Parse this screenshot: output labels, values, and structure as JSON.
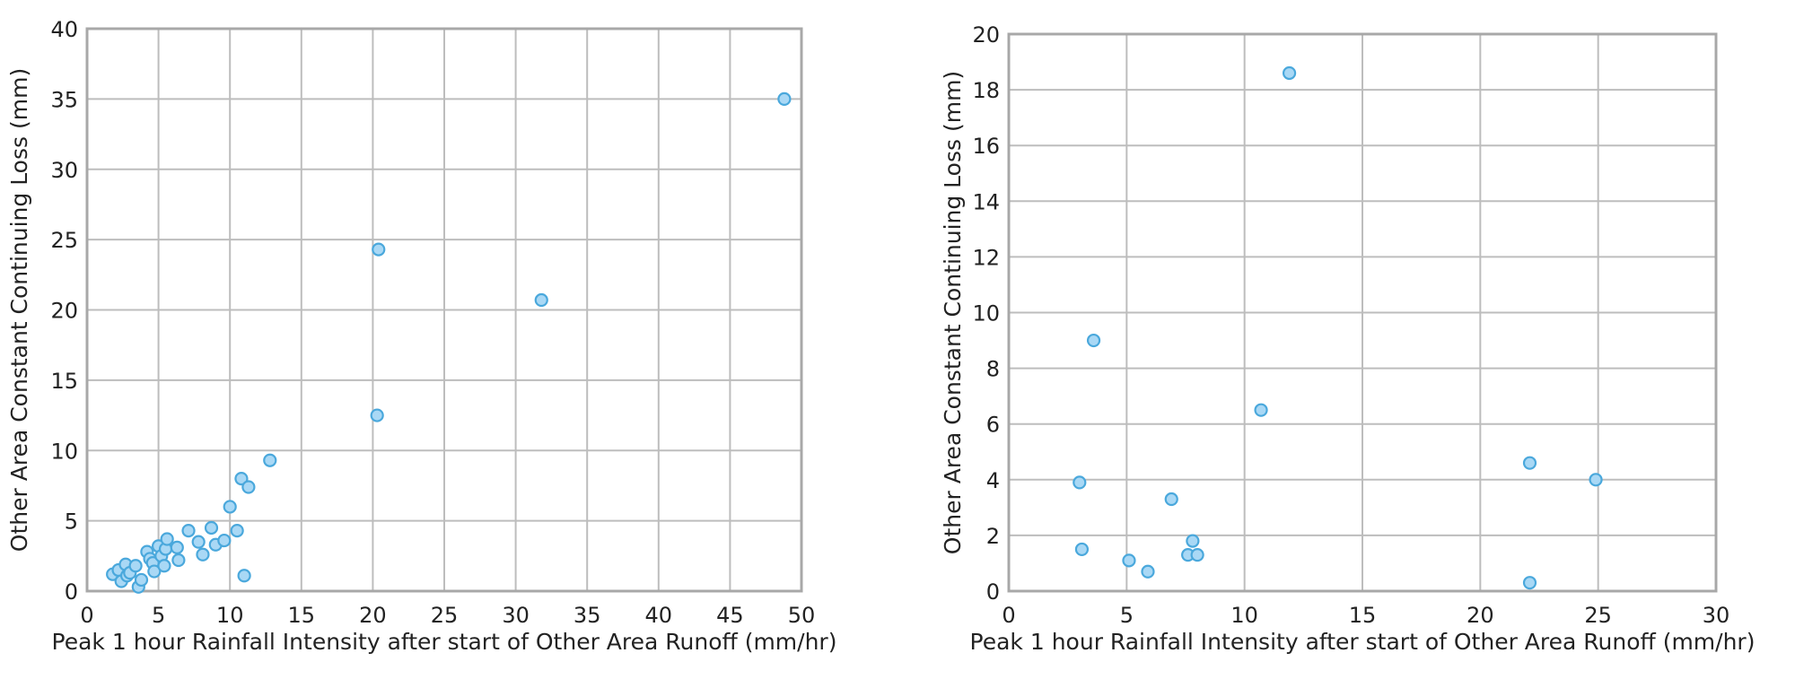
{
  "chart_data": [
    {
      "type": "scatter",
      "xlabel": "Peak 1 hour Rainfall Intensity after start of Other Area Runoff (mm/hr)",
      "ylabel": "Other Area Constant Continuing Loss (mm)",
      "xlim": [
        0,
        50
      ],
      "ylim": [
        0,
        40
      ],
      "xticks": [
        "0",
        "5",
        "10",
        "15",
        "20",
        "25",
        "30",
        "35",
        "40",
        "45",
        "50"
      ],
      "yticks": [
        "0",
        "5",
        "10",
        "15",
        "20",
        "25",
        "30",
        "35",
        "40"
      ],
      "grid": true,
      "series": [
        {
          "points": [
            [
              1.8,
              1.2
            ],
            [
              2.2,
              1.5
            ],
            [
              2.4,
              0.7
            ],
            [
              2.7,
              1.9
            ],
            [
              2.8,
              1.1
            ],
            [
              3.0,
              1.3
            ],
            [
              3.4,
              1.8
            ],
            [
              3.6,
              0.3
            ],
            [
              3.8,
              0.8
            ],
            [
              4.2,
              2.8
            ],
            [
              4.4,
              2.3
            ],
            [
              4.6,
              2.0
            ],
            [
              4.7,
              1.4
            ],
            [
              5.0,
              3.2
            ],
            [
              5.2,
              2.5
            ],
            [
              5.4,
              1.8
            ],
            [
              5.5,
              3.0
            ],
            [
              5.6,
              3.7
            ],
            [
              6.3,
              3.1
            ],
            [
              6.4,
              2.2
            ],
            [
              7.1,
              4.3
            ],
            [
              7.8,
              3.5
            ],
            [
              8.1,
              2.6
            ],
            [
              8.7,
              4.5
            ],
            [
              9.0,
              3.3
            ],
            [
              9.6,
              3.6
            ],
            [
              10.0,
              6.0
            ],
            [
              10.5,
              4.3
            ],
            [
              10.8,
              8.0
            ],
            [
              11.0,
              1.1
            ],
            [
              11.3,
              7.4
            ],
            [
              12.8,
              9.3
            ],
            [
              20.3,
              12.5
            ],
            [
              20.4,
              24.3
            ],
            [
              31.8,
              20.7
            ],
            [
              48.8,
              35.0
            ]
          ]
        }
      ]
    },
    {
      "type": "scatter",
      "xlabel": "Peak 1 hour Rainfall Intensity after start of Other Area Runoff (mm/hr)",
      "ylabel": "Other Area Constant Continuing Loss (mm)",
      "xlim": [
        0,
        30
      ],
      "ylim": [
        0,
        20
      ],
      "xticks": [
        "0",
        "5",
        "10",
        "15",
        "20",
        "25",
        "30"
      ],
      "yticks": [
        "0",
        "2",
        "4",
        "6",
        "8",
        "10",
        "12",
        "14",
        "16",
        "18",
        "20"
      ],
      "grid": true,
      "series": [
        {
          "points": [
            [
              3.0,
              3.9
            ],
            [
              3.1,
              1.5
            ],
            [
              3.6,
              9.0
            ],
            [
              5.1,
              1.1
            ],
            [
              5.9,
              0.7
            ],
            [
              6.9,
              3.3
            ],
            [
              7.6,
              1.3
            ],
            [
              7.8,
              1.8
            ],
            [
              8.0,
              1.3
            ],
            [
              10.7,
              6.5
            ],
            [
              11.9,
              18.6
            ],
            [
              22.1,
              4.6
            ],
            [
              22.1,
              0.3
            ],
            [
              24.9,
              4.0
            ]
          ]
        }
      ]
    }
  ],
  "colors": {
    "point_fill": "#a9d8f5",
    "point_stroke": "#4aa8dc",
    "grid": "#bdbdbd",
    "frame": "#a8a8a8"
  }
}
